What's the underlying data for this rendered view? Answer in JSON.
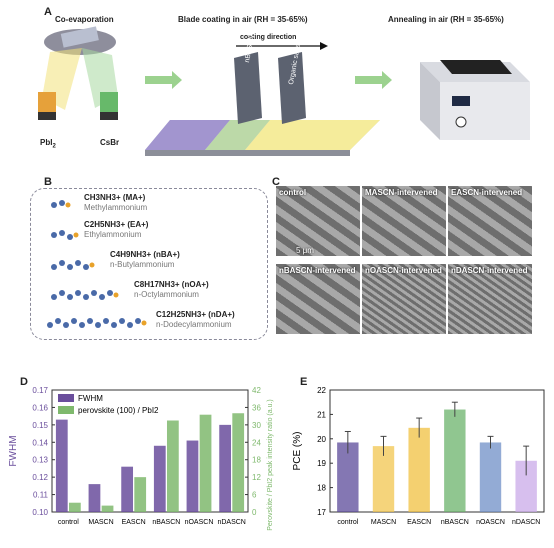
{
  "panelA": {
    "letter": "A",
    "step1_title": "Co-evaporation",
    "step2_title": "Blade coating in air (RH = 35-65%)",
    "step3_title": "Annealing in air (RH = 35-65%)",
    "coating_direction": "coating direction",
    "blade1": "nBASCN",
    "blade2": "Organic salts",
    "source1": "PbI",
    "source1_sub": "2",
    "source2": "CsBr"
  },
  "panelB": {
    "letter": "B",
    "molecules": [
      {
        "formula": "CH3NH3+ (MA+)",
        "name": "Methylammonium"
      },
      {
        "formula": "C2H5NH3+ (EA+)",
        "name": "Ethylammonium"
      },
      {
        "formula": "C4H9NH3+ (nBA+)",
        "name": "n-Butylammonium"
      },
      {
        "formula": "C8H17NH3+ (nOA+)",
        "name": "n-Octylammonium"
      },
      {
        "formula": "C12H25NH3+ (nDA+)",
        "name": "n-Dodecylammonium"
      }
    ]
  },
  "panelC": {
    "letter": "C",
    "images": [
      "control",
      "MASCN-intervened",
      "EASCN-intervened",
      "nBASCN-intervened",
      "nOASCN-intervened",
      "nDASCN-intervened"
    ],
    "scale_bar": "5 μm"
  },
  "colors": {
    "fwhm": "#6a4e9c",
    "ratio": "#7fb96d",
    "pce": [
      "#5b4a9a",
      "#f2c64f",
      "#f0c040",
      "#6bb36b",
      "#6f8fc7",
      "#c9a9e8"
    ]
  },
  "chart_data": [
    {
      "type": "bar",
      "panel": "D",
      "categories": [
        "control",
        "MASCN",
        "EASCN",
        "nBASCN",
        "nOASCN",
        "nDASCN"
      ],
      "series": [
        {
          "name": "FWHM",
          "axis": "left",
          "values": [
            0.153,
            0.116,
            0.126,
            0.138,
            0.141,
            0.15
          ]
        },
        {
          "name": "perovskite (100) / PbI2",
          "axis": "right",
          "values": [
            3.2,
            2.2,
            12.0,
            31.5,
            33.5,
            34.0
          ]
        }
      ],
      "ylabel": "FWHM",
      "ylim": [
        0.1,
        0.17
      ],
      "yticks": [
        "0.10",
        "0.11",
        "0.12",
        "0.13",
        "0.14",
        "0.15",
        "0.16",
        "0.17"
      ],
      "y2label": "Perovskite / PbI2 peak intensity ratio (a.u.)",
      "y2lim": [
        0,
        42
      ],
      "y2ticks": [
        "0",
        "6",
        "12",
        "18",
        "24",
        "30",
        "36",
        "42"
      ]
    },
    {
      "type": "bar",
      "panel": "E",
      "categories": [
        "control",
        "MASCN",
        "EASCN",
        "nBASCN",
        "nOASCN",
        "nDASCN"
      ],
      "values": [
        19.85,
        19.7,
        20.45,
        21.2,
        19.85,
        19.1
      ],
      "errors": [
        0.45,
        0.4,
        0.4,
        0.3,
        0.25,
        0.6
      ],
      "ylabel": "PCE (%)",
      "ylim": [
        17,
        22
      ],
      "yticks": [
        "17",
        "18",
        "19",
        "20",
        "21",
        "22"
      ]
    }
  ]
}
